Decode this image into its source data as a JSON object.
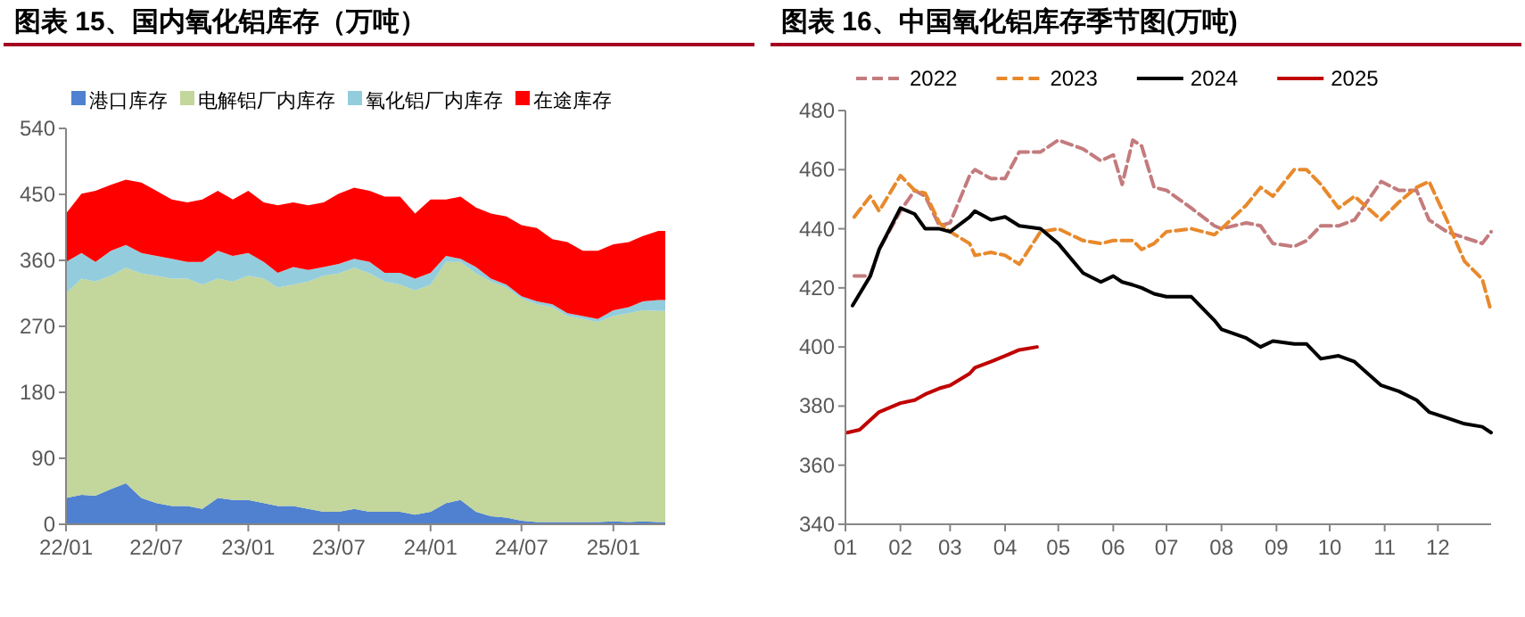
{
  "chart_data": [
    {
      "type": "area",
      "title": "图表 15、国内氧化铝库存（万吨）",
      "stacked": true,
      "legend": "top",
      "x": [
        "2022-01",
        "2022-02",
        "2022-03",
        "2022-04",
        "2022-05",
        "2022-06",
        "2022-07",
        "2022-08",
        "2022-09",
        "2022-10",
        "2022-11",
        "2022-12",
        "2023-01",
        "2023-02",
        "2023-03",
        "2023-04",
        "2023-05",
        "2023-06",
        "2023-07",
        "2023-08",
        "2023-09",
        "2023-10",
        "2023-11",
        "2023-12",
        "2024-01",
        "2024-02",
        "2024-03",
        "2024-04",
        "2024-05",
        "2024-06",
        "2024-07",
        "2024-08",
        "2024-09",
        "2024-10",
        "2024-11",
        "2024-12",
        "2025-01",
        "2025-02",
        "2025-03",
        "2025-04",
        "2025-04-15"
      ],
      "xlim": [
        "2022-01",
        "2025-04-15"
      ],
      "xticks": [
        {
          "value": "2022-01",
          "label": "22/01"
        },
        {
          "value": "2022-07",
          "label": "22/07"
        },
        {
          "value": "2023-01",
          "label": "23/01"
        },
        {
          "value": "2023-07",
          "label": "23/07"
        },
        {
          "value": "2024-01",
          "label": "24/01"
        },
        {
          "value": "2024-07",
          "label": "24/07"
        },
        {
          "value": "2025-01",
          "label": "25/01"
        }
      ],
      "ylim": [
        0,
        540
      ],
      "yticks": [
        0,
        90,
        180,
        270,
        360,
        450,
        540
      ],
      "series": [
        {
          "name": "港口库存",
          "color": "#4f81d0",
          "values": [
            36,
            40,
            39,
            48,
            56,
            36,
            29,
            25,
            25,
            21,
            36,
            33,
            33,
            29,
            25,
            25,
            21,
            17,
            17,
            21,
            17,
            17,
            17,
            13,
            17,
            29,
            33,
            17,
            11,
            9,
            5,
            3,
            3,
            3,
            3,
            3,
            4,
            3,
            4,
            3,
            3
          ]
        },
        {
          "name": "电解铝厂内库存",
          "color": "#c3d69b",
          "values": [
            279,
            295,
            292,
            291,
            294,
            306,
            310,
            310,
            310,
            306,
            299,
            298,
            306,
            306,
            298,
            302,
            310,
            322,
            325,
            329,
            325,
            314,
            310,
            306,
            310,
            329,
            325,
            325,
            320,
            314,
            303,
            297,
            293,
            281,
            277,
            273,
            280,
            285,
            288,
            288,
            288
          ]
        },
        {
          "name": "氧化铝厂内库存",
          "color": "#93cddd",
          "values": [
            43,
            35,
            27,
            34,
            31,
            28,
            27,
            27,
            23,
            31,
            38,
            35,
            31,
            23,
            20,
            24,
            16,
            12,
            13,
            12,
            16,
            12,
            16,
            16,
            16,
            8,
            4,
            9,
            4,
            4,
            3,
            4,
            4,
            4,
            4,
            4,
            8,
            8,
            12,
            15,
            15
          ]
        },
        {
          "name": "在途库存",
          "color": "#ff0000",
          "values": [
            66,
            81,
            97,
            90,
            89,
            96,
            89,
            81,
            81,
            85,
            82,
            77,
            85,
            81,
            92,
            88,
            88,
            88,
            96,
            97,
            97,
            104,
            104,
            89,
            100,
            77,
            85,
            81,
            89,
            93,
            97,
            100,
            89,
            97,
            89,
            93,
            90,
            89,
            89,
            94,
            94
          ]
        }
      ]
    },
    {
      "type": "line",
      "title": "图表 16、中国氧化铝库存季节图(万吨)",
      "legend": "top",
      "xlim": [
        "--01-01",
        "--12-31"
      ],
      "xticks": [
        {
          "value": "--01-01",
          "label": "01"
        },
        {
          "value": "--02-01",
          "label": "02"
        },
        {
          "value": "--03-01",
          "label": "03"
        },
        {
          "value": "--04-01",
          "label": "04"
        },
        {
          "value": "--05-01",
          "label": "05"
        },
        {
          "value": "--06-01",
          "label": "06"
        },
        {
          "value": "--07-01",
          "label": "07"
        },
        {
          "value": "--08-01",
          "label": "08"
        },
        {
          "value": "--09-01",
          "label": "09"
        },
        {
          "value": "--10-01",
          "label": "10"
        },
        {
          "value": "--11-01",
          "label": "11"
        },
        {
          "value": "--12-01",
          "label": "12"
        }
      ],
      "ylim": [
        340,
        480
      ],
      "yticks": [
        340,
        360,
        380,
        400,
        420,
        440,
        460,
        480
      ],
      "series": [
        {
          "name": "2022",
          "color": "#c47b7d",
          "line_style": "dashed",
          "x": [
            "--01-06",
            "--01-15",
            "--01-20",
            "--02-01",
            "--02-09",
            "--02-15",
            "--02-23",
            "--03-01",
            "--03-12",
            "--03-15",
            "--03-24",
            "--04-01",
            "--04-09",
            "--04-21",
            "--05-01",
            "--05-15",
            "--05-25",
            "--06-01",
            "--06-06",
            "--06-12",
            "--06-17",
            "--06-24",
            "--07-01",
            "--07-15",
            "--07-28",
            "--08-01",
            "--08-15",
            "--08-23",
            "--08-30",
            "--09-11",
            "--09-18",
            "--09-26",
            "--10-06",
            "--10-15",
            "--10-30",
            "--11-09",
            "--11-19",
            "--11-26",
            "--12-06",
            "--12-16",
            "--12-26",
            "--12-31"
          ],
          "values": [
            424,
            424,
            433,
            446,
            453,
            451,
            441,
            442,
            458,
            460,
            457,
            457,
            466,
            466,
            470,
            467,
            463,
            465,
            455,
            470,
            468,
            454,
            453,
            447,
            441,
            440,
            442,
            441,
            435,
            434,
            436,
            441,
            441,
            443,
            456,
            453,
            453,
            443,
            439,
            437,
            435,
            439
          ]
        },
        {
          "name": "2023",
          "color": "#e8892c",
          "line_style": "dashed",
          "x": [
            "--01-06",
            "--01-15",
            "--01-20",
            "--02-01",
            "--02-09",
            "--02-15",
            "--02-23",
            "--03-01",
            "--03-12",
            "--03-15",
            "--03-24",
            "--04-01",
            "--04-09",
            "--04-21",
            "--05-01",
            "--05-15",
            "--05-25",
            "--06-01",
            "--06-06",
            "--06-12",
            "--06-17",
            "--06-24",
            "--07-01",
            "--07-15",
            "--07-28",
            "--08-01",
            "--08-15",
            "--08-23",
            "--08-30",
            "--09-11",
            "--09-18",
            "--09-26",
            "--10-06",
            "--10-15",
            "--10-30",
            "--11-09",
            "--11-19",
            "--11-26",
            "--12-06",
            "--12-16",
            "--12-26",
            "--12-31"
          ],
          "values": [
            444,
            451,
            446,
            458,
            453,
            452,
            442,
            439,
            435,
            431,
            432,
            431,
            428,
            439,
            440,
            436,
            435,
            436,
            436,
            436,
            433,
            435,
            439,
            440,
            438,
            440,
            448,
            454,
            451,
            460,
            460,
            455,
            447,
            451,
            443,
            449,
            454,
            456,
            443,
            429,
            423,
            412
          ]
        },
        {
          "name": "2024",
          "color": "#000000",
          "line_style": "solid",
          "x": [
            "--01-05",
            "--01-15",
            "--01-20",
            "--02-01",
            "--02-09",
            "--02-15",
            "--02-23",
            "--03-01",
            "--03-12",
            "--03-15",
            "--03-24",
            "--04-01",
            "--04-09",
            "--04-21",
            "--05-01",
            "--05-15",
            "--05-25",
            "--06-01",
            "--06-06",
            "--06-12",
            "--06-17",
            "--06-24",
            "--07-01",
            "--07-15",
            "--07-28",
            "--08-01",
            "--08-15",
            "--08-23",
            "--08-30",
            "--09-11",
            "--09-18",
            "--09-26",
            "--10-06",
            "--10-15",
            "--10-30",
            "--11-09",
            "--11-19",
            "--11-26",
            "--12-06",
            "--12-16",
            "--12-26",
            "--12-31"
          ],
          "values": [
            414,
            424,
            433,
            447,
            445,
            440,
            440,
            439,
            444,
            446,
            443,
            444,
            441,
            440,
            435,
            425,
            422,
            424,
            422,
            421,
            420,
            418,
            417,
            417,
            409,
            406,
            403,
            400,
            402,
            401,
            401,
            396,
            397,
            395,
            387,
            385,
            382,
            378,
            376,
            374,
            373,
            371
          ]
        },
        {
          "name": "2025",
          "color": "#c00000",
          "line_style": "solid",
          "x": [
            "--01-02",
            "--01-09",
            "--01-20",
            "--02-01",
            "--02-09",
            "--02-15",
            "--02-23",
            "--03-01",
            "--03-12",
            "--03-15",
            "--03-24",
            "--04-01",
            "--04-09",
            "--04-19"
          ],
          "values": [
            371,
            372,
            378,
            381,
            382,
            384,
            386,
            387,
            391,
            393,
            395,
            397,
            399,
            400
          ]
        }
      ]
    }
  ]
}
